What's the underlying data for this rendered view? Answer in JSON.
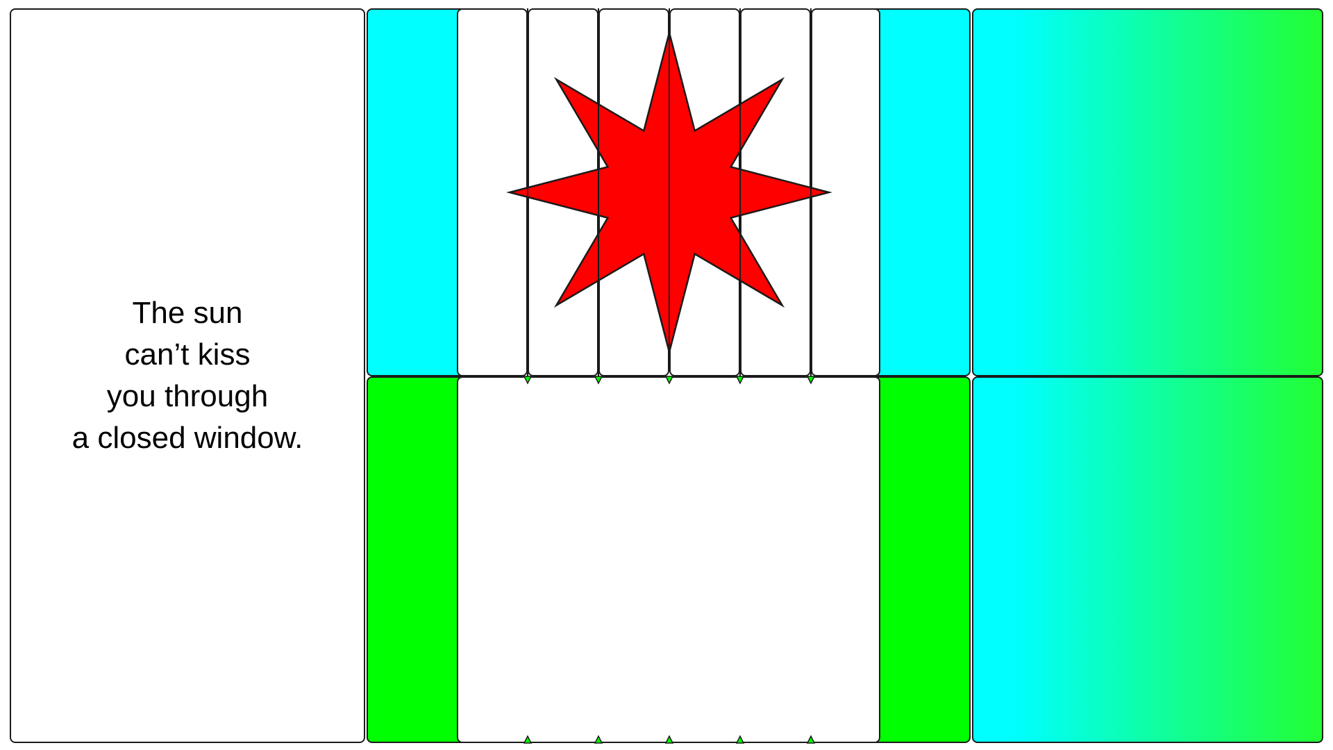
{
  "quote": {
    "lines": [
      "The sun",
      "can’t kiss",
      "you through",
      "a closed window."
    ]
  },
  "colors": {
    "background": "#ffffff",
    "outline": "#1a1a1a",
    "cyan": "#00ffff",
    "green": "#00ff00",
    "gradient_end": "#22ff33",
    "star_red": "#ff0000",
    "text": "#000000"
  },
  "shapes": {
    "star": {
      "points": 8,
      "color_key": "star_red"
    },
    "blind_slats": 6
  }
}
